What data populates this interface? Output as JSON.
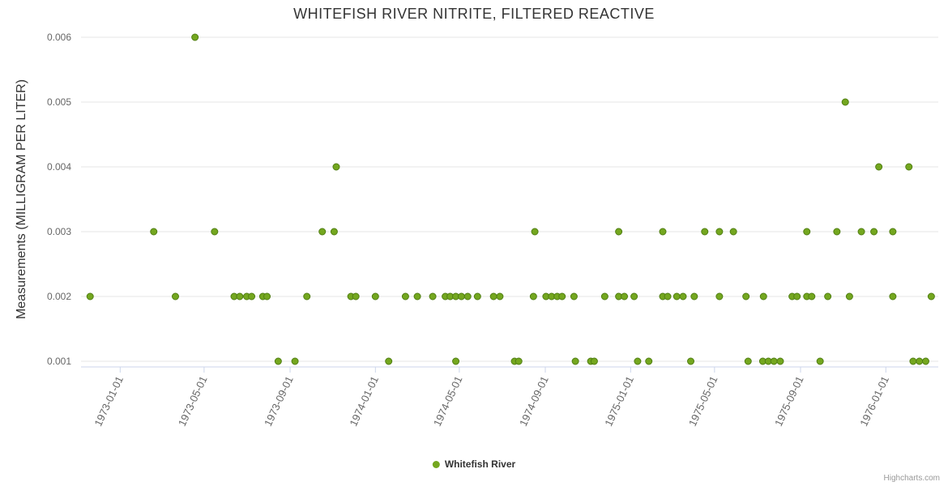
{
  "credits": "Highcharts.com",
  "chart_data": {
    "type": "scatter",
    "title": "WHITEFISH RIVER NITRITE, FILTERED REACTIVE",
    "xlabel": "",
    "ylabel": "Measurements (MILLIGRAM PER LITER)",
    "x_ticks": [
      "1973-01-01",
      "1973-05-01",
      "1973-09-01",
      "1974-01-01",
      "1974-05-01",
      "1974-09-01",
      "1975-01-01",
      "1975-05-01",
      "1975-09-01",
      "1976-01-01"
    ],
    "y_ticks": [
      0.001,
      0.002,
      0.003,
      0.004,
      0.005,
      0.006
    ],
    "ylim": [
      0.001,
      0.006
    ],
    "xlim": [
      "1972-11-06",
      "1976-03-16"
    ],
    "grid": "horizontal",
    "legend_position": "bottom-center",
    "marker_color": "#74A71F",
    "marker_stroke": "#507E14",
    "series": [
      {
        "name": "Whitefish River",
        "points": [
          [
            "1972-11-19",
            0.002
          ],
          [
            "1973-02-18",
            0.003
          ],
          [
            "1973-03-21",
            0.002
          ],
          [
            "1973-04-18",
            0.006
          ],
          [
            "1973-05-16",
            0.003
          ],
          [
            "1973-06-13",
            0.002
          ],
          [
            "1973-06-21",
            0.002
          ],
          [
            "1973-07-01",
            0.002
          ],
          [
            "1973-07-08",
            0.002
          ],
          [
            "1973-07-24",
            0.002
          ],
          [
            "1973-07-30",
            0.002
          ],
          [
            "1973-08-15",
            0.001
          ],
          [
            "1973-09-08",
            0.001
          ],
          [
            "1973-09-25",
            0.002
          ],
          [
            "1973-10-17",
            0.003
          ],
          [
            "1973-11-03",
            0.003
          ],
          [
            "1973-11-06",
            0.004
          ],
          [
            "1973-11-27",
            0.002
          ],
          [
            "1973-12-04",
            0.002
          ],
          [
            "1974-01-01",
            0.002
          ],
          [
            "1974-01-20",
            0.001
          ],
          [
            "1974-02-13",
            0.002
          ],
          [
            "1974-03-02",
            0.002
          ],
          [
            "1974-03-24",
            0.002
          ],
          [
            "1974-04-11",
            0.002
          ],
          [
            "1974-04-18",
            0.002
          ],
          [
            "1974-04-26",
            0.002
          ],
          [
            "1974-04-26",
            0.001
          ],
          [
            "1974-05-04",
            0.002
          ],
          [
            "1974-05-13",
            0.002
          ],
          [
            "1974-05-27",
            0.002
          ],
          [
            "1974-06-19",
            0.002
          ],
          [
            "1974-06-28",
            0.002
          ],
          [
            "1974-07-19",
            0.001
          ],
          [
            "1974-07-25",
            0.001
          ],
          [
            "1974-08-15",
            0.002
          ],
          [
            "1974-08-17",
            0.003
          ],
          [
            "1974-09-02",
            0.002
          ],
          [
            "1974-09-10",
            0.002
          ],
          [
            "1974-09-18",
            0.002
          ],
          [
            "1974-09-25",
            0.002
          ],
          [
            "1974-10-12",
            0.002
          ],
          [
            "1974-10-14",
            0.001
          ],
          [
            "1974-11-05",
            0.001
          ],
          [
            "1974-11-10",
            0.001
          ],
          [
            "1974-11-25",
            0.002
          ],
          [
            "1974-12-15",
            0.003
          ],
          [
            "1974-12-15",
            0.002
          ],
          [
            "1974-12-23",
            0.002
          ],
          [
            "1975-01-06",
            0.002
          ],
          [
            "1975-01-11",
            0.001
          ],
          [
            "1975-01-27",
            0.001
          ],
          [
            "1975-02-16",
            0.003
          ],
          [
            "1975-02-16",
            0.002
          ],
          [
            "1975-02-23",
            0.002
          ],
          [
            "1975-03-08",
            0.002
          ],
          [
            "1975-03-17",
            0.002
          ],
          [
            "1975-03-28",
            0.001
          ],
          [
            "1975-04-02",
            0.002
          ],
          [
            "1975-04-17",
            0.003
          ],
          [
            "1975-05-08",
            0.003
          ],
          [
            "1975-05-08",
            0.002
          ],
          [
            "1975-05-28",
            0.003
          ],
          [
            "1975-06-15",
            0.002
          ],
          [
            "1975-06-18",
            0.001
          ],
          [
            "1975-07-09",
            0.001
          ],
          [
            "1975-07-10",
            0.002
          ],
          [
            "1975-07-17",
            0.001
          ],
          [
            "1975-07-25",
            0.001
          ],
          [
            "1975-08-03",
            0.001
          ],
          [
            "1975-08-20",
            0.002
          ],
          [
            "1975-08-27",
            0.002
          ],
          [
            "1975-09-10",
            0.003
          ],
          [
            "1975-09-10",
            0.002
          ],
          [
            "1975-09-17",
            0.002
          ],
          [
            "1975-09-29",
            0.001
          ],
          [
            "1975-10-10",
            0.002
          ],
          [
            "1975-10-23",
            0.003
          ],
          [
            "1975-11-04",
            0.005
          ],
          [
            "1975-11-10",
            0.002
          ],
          [
            "1975-11-27",
            0.003
          ],
          [
            "1975-12-15",
            0.003
          ],
          [
            "1975-12-22",
            0.004
          ],
          [
            "1976-01-11",
            0.003
          ],
          [
            "1976-01-11",
            0.002
          ],
          [
            "1976-02-03",
            0.004
          ],
          [
            "1976-02-09",
            0.001
          ],
          [
            "1976-02-18",
            0.001
          ],
          [
            "1976-02-27",
            0.001
          ],
          [
            "1976-03-06",
            0.002
          ]
        ]
      }
    ]
  }
}
